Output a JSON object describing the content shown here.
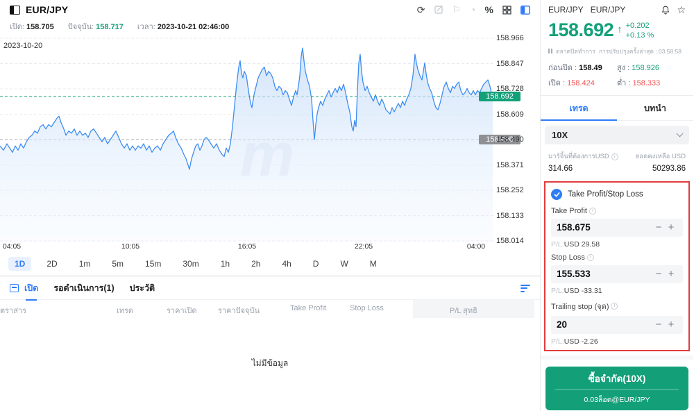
{
  "colors": {
    "green": "#13a079",
    "red": "#f25555",
    "blue": "#2e7cf6",
    "chart_line": "#3d8df2",
    "badge_gray": "#8e9094",
    "alert_border": "#e23c3c"
  },
  "icons": {
    "refresh": "⟳",
    "flag": "⚐",
    "pie": "◔",
    "percent": "%",
    "star": "☆",
    "arrow_up": "↑",
    "minus": "−",
    "plus": "+",
    "info": "i"
  },
  "chart_header": {
    "symbol": "EUR/JPY"
  },
  "chart_info": {
    "open_label": "เปิด:",
    "open": "158.705",
    "current_label": "ปัจจุบัน:",
    "current": "158.717",
    "time_label": "เวลา:",
    "time": "2023-10-21 02:46:00"
  },
  "chart_data": {
    "type": "area",
    "title": "EUR/JPY 1D intraday line chart",
    "date_label": "2023-10-20",
    "x_ticks": [
      "04:05",
      "10:05",
      "16:05",
      "22:05",
      "04:00"
    ],
    "y_ticks": [
      "158.966",
      "158.847",
      "158.728",
      "158.609",
      "158.490",
      "158.371",
      "158.252",
      "158.133",
      "158.014"
    ],
    "ylim": [
      157.995,
      159.0
    ],
    "current_price": "158.692",
    "prev_close": "158.490",
    "grid": "horizontal-dashed",
    "points": [
      [
        0,
        158.46
      ],
      [
        5,
        158.44
      ],
      [
        10,
        158.47
      ],
      [
        14,
        158.45
      ],
      [
        18,
        158.43
      ],
      [
        22,
        158.46
      ],
      [
        26,
        158.44
      ],
      [
        30,
        158.47
      ],
      [
        34,
        158.45
      ],
      [
        38,
        158.48
      ],
      [
        42,
        158.5
      ],
      [
        46,
        158.51
      ],
      [
        50,
        158.53
      ],
      [
        54,
        158.52
      ],
      [
        58,
        158.55
      ],
      [
        62,
        158.56
      ],
      [
        66,
        158.54
      ],
      [
        70,
        158.56
      ],
      [
        74,
        158.55
      ],
      [
        78,
        158.57
      ],
      [
        82,
        158.59
      ],
      [
        85,
        158.6
      ],
      [
        88,
        158.57
      ],
      [
        92,
        158.54
      ],
      [
        95,
        158.51
      ],
      [
        99,
        158.53
      ],
      [
        103,
        158.52
      ],
      [
        107,
        158.54
      ],
      [
        111,
        158.51
      ],
      [
        115,
        158.53
      ],
      [
        119,
        158.51
      ],
      [
        123,
        158.52
      ],
      [
        127,
        158.5
      ],
      [
        131,
        158.53
      ],
      [
        135,
        158.54
      ],
      [
        139,
        158.52
      ],
      [
        143,
        158.5
      ],
      [
        147,
        158.48
      ],
      [
        151,
        158.5
      ],
      [
        155,
        158.47
      ],
      [
        159,
        158.49
      ],
      [
        163,
        158.51
      ],
      [
        167,
        158.53
      ],
      [
        171,
        158.5
      ],
      [
        175,
        158.47
      ],
      [
        179,
        158.45
      ],
      [
        183,
        158.47
      ],
      [
        187,
        158.44
      ],
      [
        191,
        158.46
      ],
      [
        195,
        158.44
      ],
      [
        199,
        158.46
      ],
      [
        203,
        158.45
      ],
      [
        207,
        158.47
      ],
      [
        211,
        158.44
      ],
      [
        215,
        158.46
      ],
      [
        219,
        158.43
      ],
      [
        223,
        158.45
      ],
      [
        227,
        158.46
      ],
      [
        231,
        158.44
      ],
      [
        235,
        158.47
      ],
      [
        239,
        158.49
      ],
      [
        243,
        158.51
      ],
      [
        247,
        158.52
      ],
      [
        250,
        158.53
      ],
      [
        253,
        158.5
      ],
      [
        257,
        158.47
      ],
      [
        261,
        158.45
      ],
      [
        265,
        158.42
      ],
      [
        268,
        158.4
      ],
      [
        271,
        158.37
      ],
      [
        273,
        158.35
      ],
      [
        276,
        158.4
      ],
      [
        279,
        158.43
      ],
      [
        282,
        158.46
      ],
      [
        285,
        158.47
      ],
      [
        288,
        158.44
      ],
      [
        291,
        158.46
      ],
      [
        294,
        158.49
      ],
      [
        297,
        158.5
      ],
      [
        300,
        158.49
      ],
      [
        304,
        158.47
      ],
      [
        308,
        158.45
      ],
      [
        312,
        158.47
      ],
      [
        316,
        158.44
      ],
      [
        320,
        158.42
      ],
      [
        323,
        158.41
      ],
      [
        326,
        158.45
      ],
      [
        329,
        158.43
      ],
      [
        332,
        158.47
      ],
      [
        335,
        158.55
      ],
      [
        338,
        158.65
      ],
      [
        341,
        158.75
      ],
      [
        344,
        158.83
      ],
      [
        346,
        158.86
      ],
      [
        348,
        158.8
      ],
      [
        350,
        158.78
      ],
      [
        352,
        158.81
      ],
      [
        355,
        158.79
      ],
      [
        358,
        158.72
      ],
      [
        361,
        158.66
      ],
      [
        363,
        158.64
      ],
      [
        366,
        158.7
      ],
      [
        369,
        158.74
      ],
      [
        372,
        158.78
      ],
      [
        375,
        158.8
      ],
      [
        378,
        158.82
      ],
      [
        381,
        158.83
      ],
      [
        384,
        158.79
      ],
      [
        387,
        158.81
      ],
      [
        390,
        158.8
      ],
      [
        393,
        158.78
      ],
      [
        396,
        158.74
      ],
      [
        399,
        158.72
      ],
      [
        402,
        158.74
      ],
      [
        405,
        158.73
      ],
      [
        408,
        158.7
      ],
      [
        411,
        158.72
      ],
      [
        414,
        158.71
      ],
      [
        417,
        158.68
      ],
      [
        420,
        158.65
      ],
      [
        423,
        158.69
      ],
      [
        426,
        158.72
      ],
      [
        428,
        158.7
      ],
      [
        430,
        158.74
      ],
      [
        432,
        158.79
      ],
      [
        434,
        158.88
      ],
      [
        436,
        158.92
      ],
      [
        438,
        158.86
      ],
      [
        440,
        158.81
      ],
      [
        443,
        158.77
      ],
      [
        446,
        158.74
      ],
      [
        449,
        158.68
      ],
      [
        451,
        158.58
      ],
      [
        453,
        158.49
      ],
      [
        455,
        158.56
      ],
      [
        457,
        158.61
      ],
      [
        459,
        158.64
      ],
      [
        462,
        158.67
      ],
      [
        465,
        158.65
      ],
      [
        468,
        158.68
      ],
      [
        471,
        158.7
      ],
      [
        474,
        158.72
      ],
      [
        477,
        158.69
      ],
      [
        480,
        158.71
      ],
      [
        483,
        158.73
      ],
      [
        486,
        158.71
      ],
      [
        489,
        158.74
      ],
      [
        492,
        158.72
      ],
      [
        495,
        158.75
      ],
      [
        498,
        158.71
      ],
      [
        501,
        158.66
      ],
      [
        504,
        158.62
      ],
      [
        507,
        158.55
      ],
      [
        509,
        158.53
      ],
      [
        511,
        158.58
      ],
      [
        513,
        158.55
      ],
      [
        515,
        158.72
      ],
      [
        517,
        158.85
      ],
      [
        519,
        158.89
      ],
      [
        521,
        158.81
      ],
      [
        523,
        158.76
      ],
      [
        526,
        158.72
      ],
      [
        529,
        158.74
      ],
      [
        532,
        158.71
      ],
      [
        535,
        158.69
      ],
      [
        538,
        158.67
      ],
      [
        541,
        158.7
      ],
      [
        544,
        158.67
      ],
      [
        547,
        158.65
      ],
      [
        550,
        158.68
      ],
      [
        553,
        158.66
      ],
      [
        556,
        158.63
      ],
      [
        559,
        158.62
      ],
      [
        562,
        158.61
      ],
      [
        565,
        158.64
      ],
      [
        568,
        158.62
      ],
      [
        571,
        158.64
      ],
      [
        574,
        158.66
      ],
      [
        577,
        158.64
      ],
      [
        580,
        158.67
      ],
      [
        583,
        158.65
      ],
      [
        586,
        158.68
      ],
      [
        589,
        158.7
      ],
      [
        592,
        158.73
      ],
      [
        595,
        158.79
      ],
      [
        598,
        158.89
      ],
      [
        600,
        158.85
      ],
      [
        602,
        158.82
      ],
      [
        605,
        158.79
      ],
      [
        608,
        158.77
      ],
      [
        610,
        158.81
      ],
      [
        612,
        158.85
      ],
      [
        614,
        158.8
      ],
      [
        616,
        158.76
      ],
      [
        619,
        158.73
      ],
      [
        622,
        158.71
      ],
      [
        625,
        158.67
      ],
      [
        628,
        158.64
      ],
      [
        631,
        158.63
      ],
      [
        634,
        158.66
      ],
      [
        637,
        158.7
      ],
      [
        640,
        158.74
      ],
      [
        643,
        158.76
      ],
      [
        646,
        158.73
      ],
      [
        649,
        158.71
      ],
      [
        652,
        158.74
      ],
      [
        655,
        158.73
      ],
      [
        658,
        158.75
      ],
      [
        661,
        158.76
      ],
      [
        664,
        158.72
      ],
      [
        667,
        158.7
      ],
      [
        670,
        158.71
      ],
      [
        673,
        158.73
      ],
      [
        676,
        158.71
      ],
      [
        679,
        158.7
      ],
      [
        682,
        158.72
      ],
      [
        685,
        158.7
      ],
      [
        688,
        158.72
      ],
      [
        691,
        158.71
      ],
      [
        694,
        158.73
      ],
      [
        697,
        158.75
      ],
      [
        700,
        158.76
      ],
      [
        703,
        158.77
      ],
      [
        706,
        158.74
      ],
      [
        708,
        158.71
      ],
      [
        710,
        158.692
      ]
    ]
  },
  "timeframes": {
    "items": [
      "1D",
      "2D",
      "1m",
      "5m",
      "15m",
      "30m",
      "1h",
      "2h",
      "4h",
      "D",
      "W",
      "M"
    ],
    "active": "1D"
  },
  "positions": {
    "tabs": [
      {
        "label": "เปิด"
      },
      {
        "label": "รอดำเนินการ(1)"
      },
      {
        "label": "ประวัติ"
      }
    ],
    "active_tab": "เปิด",
    "columns": [
      "ตราสาร",
      "เทรด",
      "ราคาเปิด",
      "ราคาปัจจุบัน",
      "Take Profit",
      "Stop Loss",
      "P/L สุทธิ"
    ],
    "empty": "ไม่มีข้อมูล"
  },
  "trade_panel": {
    "header_symbols": {
      "first": "EUR/JPY",
      "second": "EUR/JPY"
    },
    "price": "158.692",
    "change": "+0.202",
    "change_pct": "+0.13 %",
    "market_status": "ตลาดปิดทำการ",
    "last_update": "การปรับปรุงครั้งล่าสุด : 03:58:58",
    "prev_close_label": "ก่อนปิด :",
    "prev_close": "158.49",
    "high_label": "สูง :",
    "high": "158.926",
    "open_label": "เปิด :",
    "open": "158.424",
    "low_label": "ต่ำ :",
    "low": "158.333",
    "tabs": {
      "trade": "เทรด",
      "intro": "บทนำ"
    },
    "leverage": "10X",
    "margin_label": "มาร์จิ้นที่ต้องการUSD",
    "balance_label": "ยอดคงเหลือ USD",
    "margin": "314.66",
    "balance": "50293.86",
    "tpsl": {
      "toggle_label": "Take Profit/Stop Loss",
      "fields": [
        {
          "label": "Take Profit",
          "value": "158.675",
          "pl_label": "P/L:",
          "pl": "USD 29.58"
        },
        {
          "label": "Stop Loss",
          "value": "155.533",
          "pl_label": "P/L:",
          "pl": "USD -33.31"
        },
        {
          "label": "Trailing stop (จุด)",
          "value": "20",
          "pl_label": "P/L:",
          "pl": "USD -2.26"
        }
      ]
    },
    "buy_button": {
      "label": "ซื้อจำกัด(10X)",
      "sub": "0.03ล็อต@EUR/JPY"
    }
  }
}
